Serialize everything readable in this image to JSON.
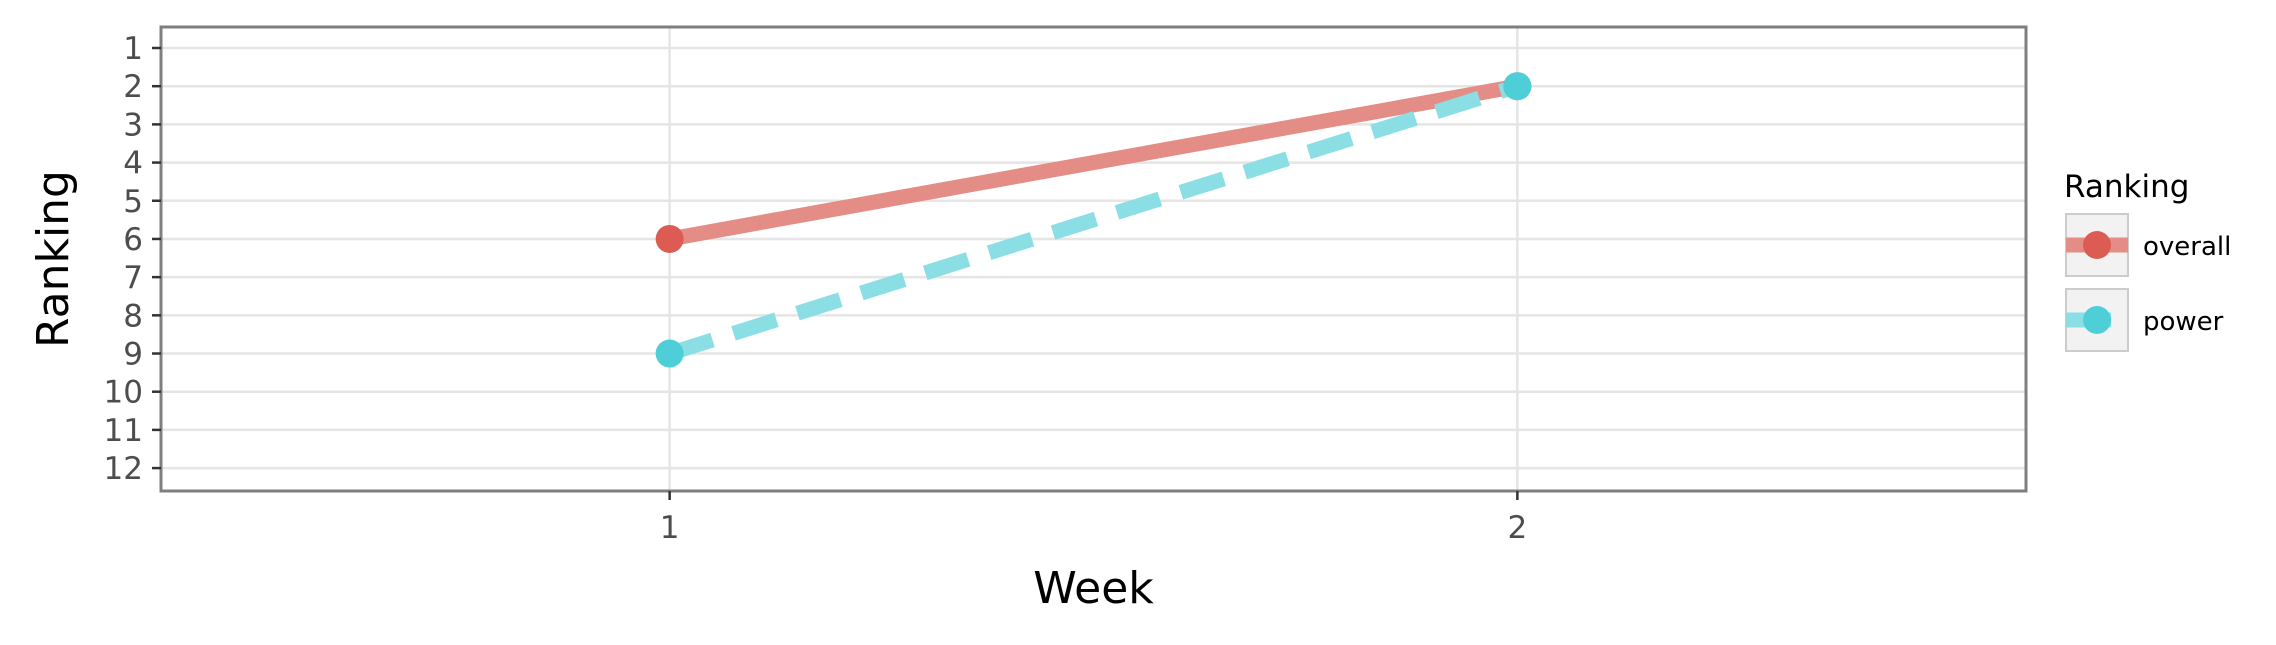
{
  "chart_data": {
    "type": "line",
    "xlabel": "Week",
    "ylabel": "Ranking",
    "x_ticks": [
      1,
      2
    ],
    "y_ticks": [
      1,
      2,
      3,
      4,
      5,
      6,
      7,
      8,
      9,
      10,
      11,
      12
    ],
    "xlim": [
      0.4,
      2.6
    ],
    "ylim": [
      12.6,
      0.45
    ],
    "y_reversed": true,
    "grid": true,
    "legend": {
      "title": "Ranking",
      "placement": "right"
    },
    "series": [
      {
        "name": "overall",
        "x": [
          1,
          2
        ],
        "y": [
          6,
          2
        ],
        "color": "#dc5b52",
        "line_color": "#e48c86",
        "dash": "solid"
      },
      {
        "name": "power",
        "x": [
          1,
          2
        ],
        "y": [
          9,
          2
        ],
        "color": "#4ecfd8",
        "line_color": "#8bdfe4",
        "dash": "dashed"
      }
    ]
  }
}
